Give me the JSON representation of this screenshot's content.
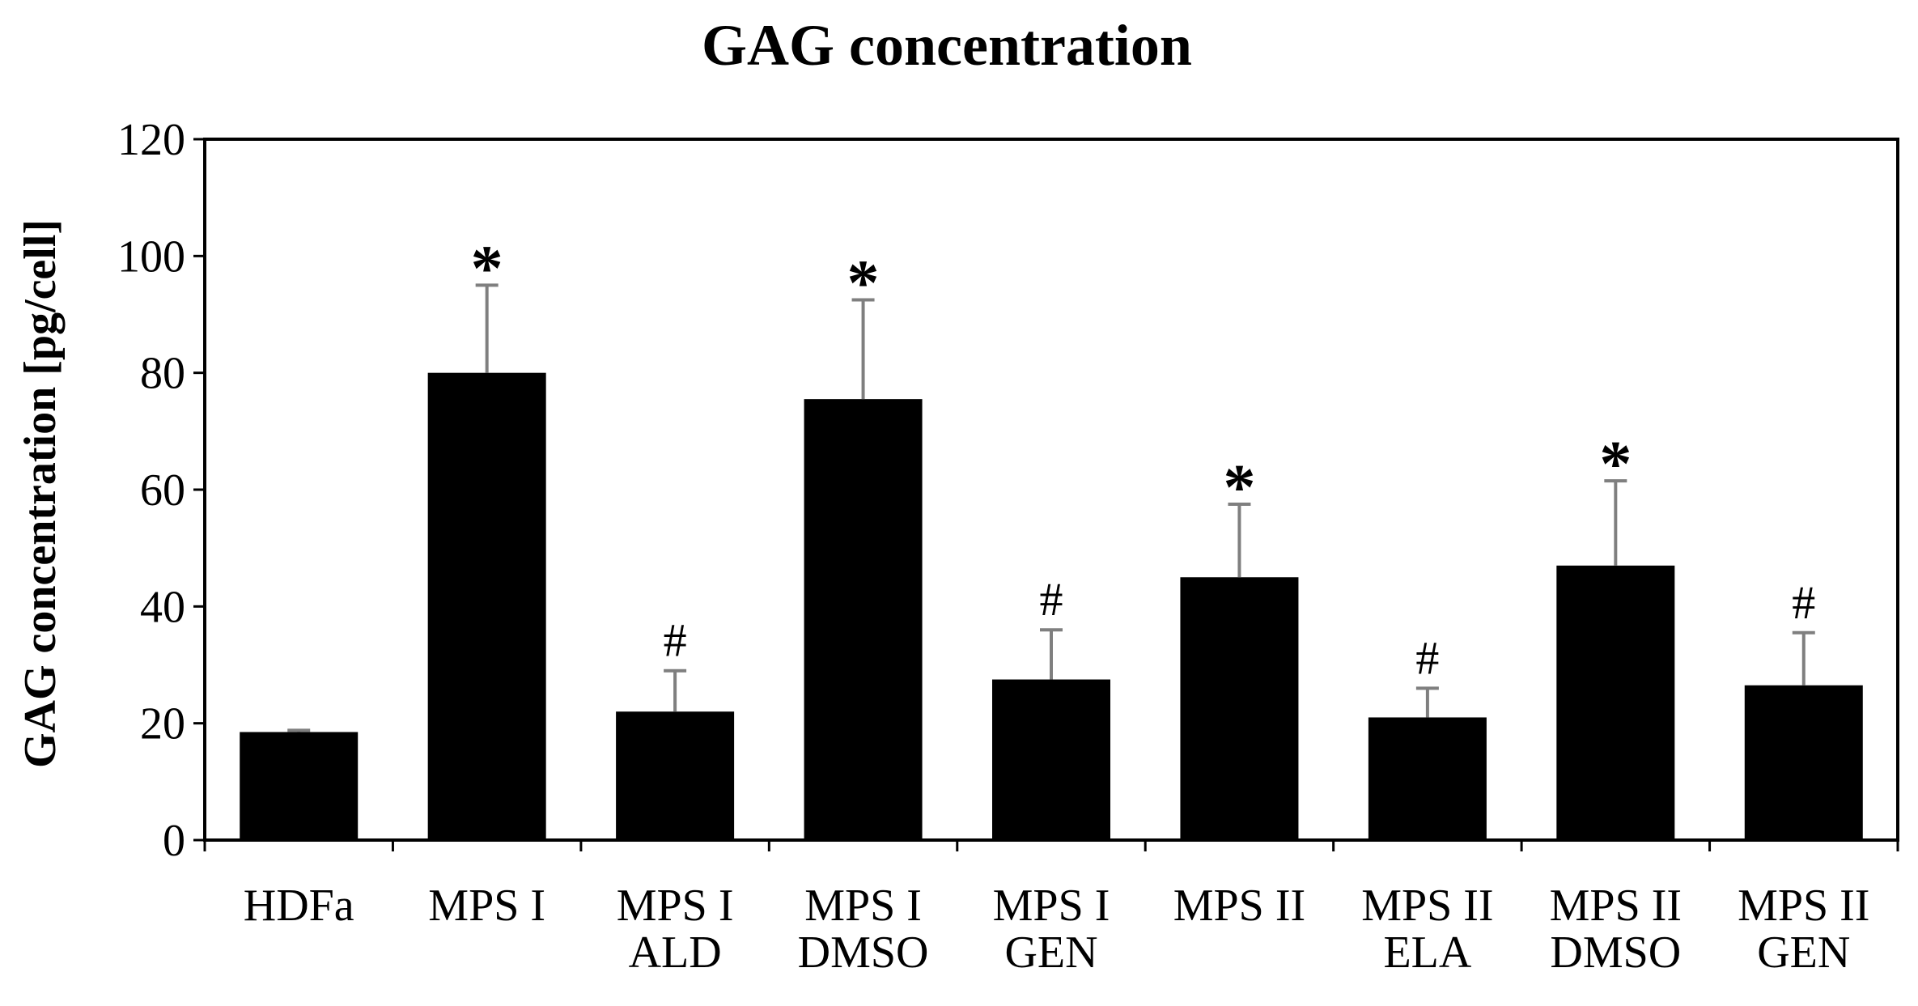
{
  "chart_data": {
    "type": "bar",
    "title": "GAG concentration",
    "xlabel": "",
    "ylabel": "GAG concentration [pg/cell]",
    "ylim": [
      0,
      120
    ],
    "yticks": [
      0,
      20,
      40,
      60,
      80,
      100,
      120
    ],
    "grid": false,
    "legend": "none",
    "categories": [
      [
        "HDFa"
      ],
      [
        "MPS I"
      ],
      [
        "MPS I",
        "ALD"
      ],
      [
        "MPS I",
        "DMSO"
      ],
      [
        "MPS I",
        "GEN"
      ],
      [
        "MPS II"
      ],
      [
        "MPS II",
        "ELA"
      ],
      [
        "MPS II",
        "DMSO"
      ],
      [
        "MPS II",
        "GEN"
      ]
    ],
    "values": [
      18.5,
      80,
      22,
      75.5,
      27.5,
      45,
      21,
      47,
      26.5
    ],
    "errors": [
      0.3,
      15,
      7,
      17,
      8.5,
      12.5,
      5,
      14.5,
      9
    ],
    "annotations": [
      "",
      "*",
      "#",
      "*",
      "#",
      "*",
      "#",
      "*",
      "#"
    ],
    "bar_color": "#000000",
    "error_color": "#7f7f7f"
  }
}
